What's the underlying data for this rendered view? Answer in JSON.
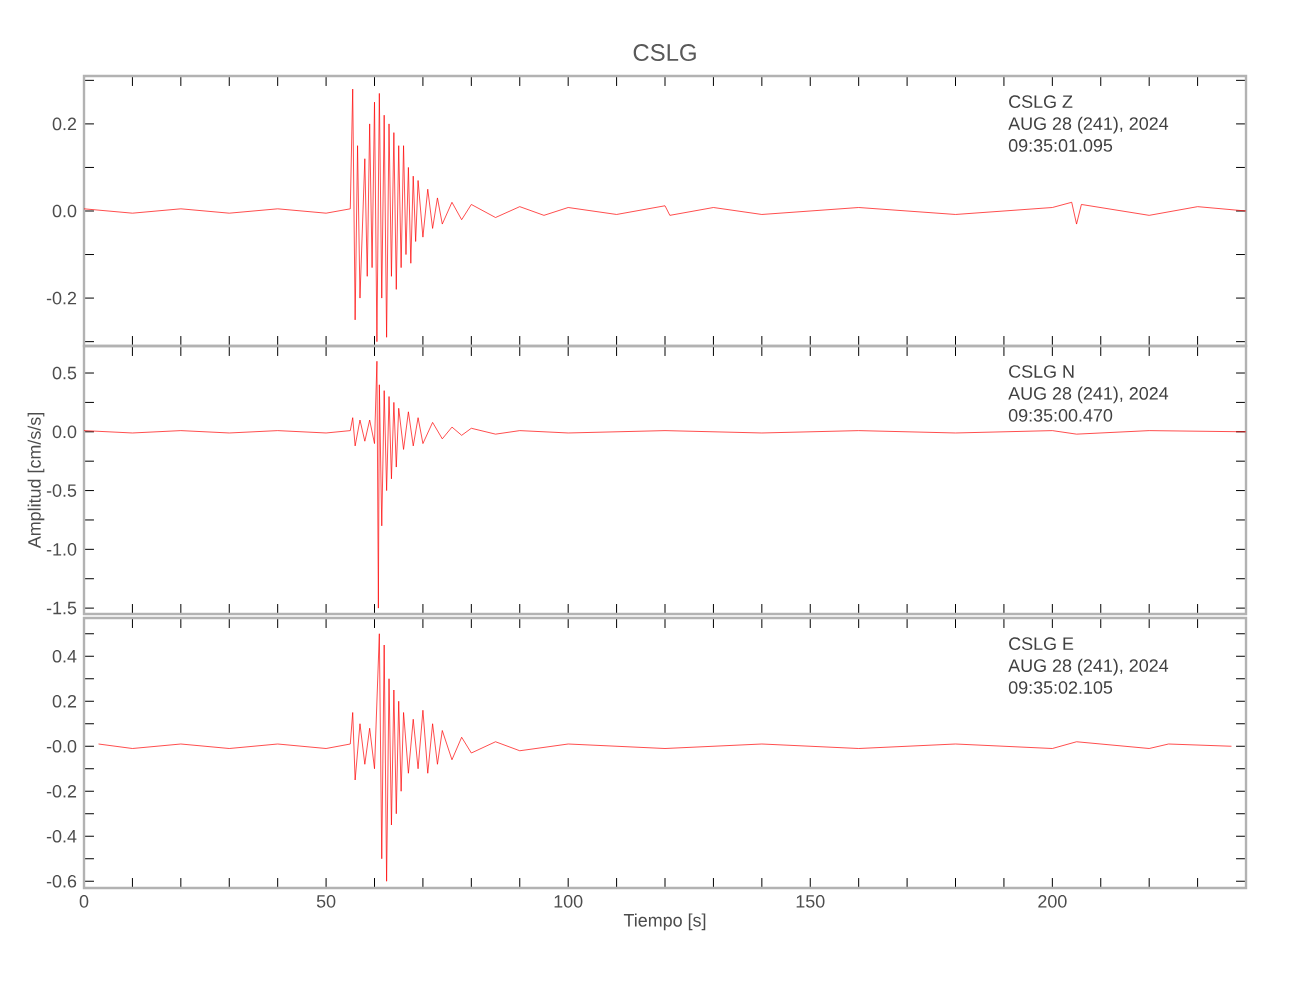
{
  "chart_data": [
    {
      "type": "line",
      "title": "CSLG",
      "color": "#ff0000",
      "marker": "none",
      "line_style": "solid",
      "tick_labels": "y",
      "annotations": [
        "CSLG   Z",
        "AUG 28 (241), 2024",
        "09:35:01.095"
      ],
      "xlim": [
        0,
        240
      ],
      "xticks": [
        {
          "value": 0,
          "label": null
        },
        {
          "value": 10,
          "label": null
        },
        {
          "value": 20,
          "label": null
        },
        {
          "value": 30,
          "label": null
        },
        {
          "value": 40,
          "label": null
        },
        {
          "value": 50,
          "label": null
        },
        {
          "value": 60,
          "label": null
        },
        {
          "value": 70,
          "label": null
        },
        {
          "value": 80,
          "label": null
        },
        {
          "value": 90,
          "label": null
        },
        {
          "value": 100,
          "label": null
        },
        {
          "value": 110,
          "label": null
        },
        {
          "value": 120,
          "label": null
        },
        {
          "value": 130,
          "label": null
        },
        {
          "value": 140,
          "label": null
        },
        {
          "value": 150,
          "label": null
        },
        {
          "value": 160,
          "label": null
        },
        {
          "value": 170,
          "label": null
        },
        {
          "value": 180,
          "label": null
        },
        {
          "value": 190,
          "label": null
        },
        {
          "value": 200,
          "label": null
        },
        {
          "value": 210,
          "label": null
        },
        {
          "value": 220,
          "label": null
        },
        {
          "value": 230,
          "label": null
        },
        {
          "value": 240,
          "label": null
        }
      ],
      "ylim": [
        -0.31,
        0.31
      ],
      "yticks": [
        {
          "value": -0.3,
          "label": null
        },
        -0.2,
        {
          "value": -0.1,
          "label": null
        },
        {
          "value": 0,
          "label": "0.0"
        },
        {
          "value": 0.1,
          "label": null
        },
        0.2,
        {
          "value": 0.3,
          "label": null
        }
      ],
      "x": [
        0,
        10,
        20,
        30,
        40,
        50,
        55,
        55.5,
        56,
        56.5,
        57,
        58,
        58.5,
        59,
        59.5,
        60,
        60.5,
        61,
        61.5,
        62,
        62.5,
        63,
        63.5,
        64,
        64.5,
        65,
        65.5,
        66,
        66.5,
        67,
        67.5,
        68,
        68.5,
        69,
        70,
        71,
        72,
        73,
        74,
        76,
        78,
        80,
        85,
        90,
        95,
        100,
        110,
        120,
        121,
        130,
        140,
        160,
        180,
        200,
        204,
        205,
        206,
        220,
        230,
        240
      ],
      "values": [
        0.005,
        -0.005,
        0.005,
        -0.005,
        0.005,
        -0.005,
        0.005,
        0.28,
        -0.25,
        0.15,
        -0.2,
        0.12,
        -0.15,
        0.2,
        -0.13,
        0.25,
        -0.3,
        0.27,
        -0.2,
        0.22,
        -0.29,
        0.2,
        -0.15,
        0.18,
        -0.18,
        0.15,
        -0.13,
        0.15,
        -0.1,
        0.1,
        -0.12,
        0.08,
        -0.07,
        0.07,
        -0.06,
        0.05,
        -0.04,
        0.03,
        -0.03,
        0.02,
        -0.02,
        0.015,
        -0.015,
        0.01,
        -0.01,
        0.008,
        -0.008,
        0.012,
        -0.01,
        0.008,
        -0.008,
        0.008,
        -0.008,
        0.008,
        0.02,
        -0.03,
        0.015,
        -0.01,
        0.01,
        0
      ]
    },
    {
      "type": "line",
      "ylabel": "Amplitud [cm/s/s]",
      "color": "#ff0000",
      "marker": "none",
      "line_style": "solid",
      "tick_labels": "y",
      "annotations": [
        "CSLG   N",
        "AUG 28 (241), 2024",
        "09:35:00.470"
      ],
      "xlim": [
        0,
        240
      ],
      "xticks": [
        {
          "value": 0,
          "label": null
        },
        {
          "value": 10,
          "label": null
        },
        {
          "value": 20,
          "label": null
        },
        {
          "value": 30,
          "label": null
        },
        {
          "value": 40,
          "label": null
        },
        {
          "value": 50,
          "label": null
        },
        {
          "value": 60,
          "label": null
        },
        {
          "value": 70,
          "label": null
        },
        {
          "value": 80,
          "label": null
        },
        {
          "value": 90,
          "label": null
        },
        {
          "value": 100,
          "label": null
        },
        {
          "value": 110,
          "label": null
        },
        {
          "value": 120,
          "label": null
        },
        {
          "value": 130,
          "label": null
        },
        {
          "value": 140,
          "label": null
        },
        {
          "value": 150,
          "label": null
        },
        {
          "value": 160,
          "label": null
        },
        {
          "value": 170,
          "label": null
        },
        {
          "value": 180,
          "label": null
        },
        {
          "value": 190,
          "label": null
        },
        {
          "value": 200,
          "label": null
        },
        {
          "value": 210,
          "label": null
        },
        {
          "value": 220,
          "label": null
        },
        {
          "value": 230,
          "label": null
        },
        {
          "value": 240,
          "label": null
        }
      ],
      "ylim": [
        -1.55,
        0.73
      ],
      "yticks": [
        -1.5,
        {
          "value": -1.25,
          "label": null
        },
        {
          "value": -1,
          "label": "-1.0"
        },
        {
          "value": -0.75,
          "label": null
        },
        -0.5,
        {
          "value": -0.25,
          "label": null
        },
        {
          "value": 0,
          "label": "0.0"
        },
        {
          "value": 0.25,
          "label": null
        },
        0.5
      ],
      "x": [
        0,
        10,
        20,
        30,
        40,
        50,
        55,
        55.5,
        56,
        57,
        58,
        59,
        60,
        60.5,
        60.8,
        61,
        61.5,
        62,
        62.5,
        63,
        63.5,
        64,
        64.5,
        65,
        66,
        67,
        68,
        69,
        70,
        72,
        74,
        76,
        78,
        80,
        85,
        90,
        100,
        120,
        140,
        160,
        180,
        200,
        205,
        220,
        240
      ],
      "values": [
        0.01,
        -0.01,
        0.01,
        -0.01,
        0.01,
        -0.01,
        0.01,
        0.12,
        -0.12,
        0.1,
        -0.08,
        0.1,
        -0.1,
        0.6,
        -1.5,
        0.4,
        -0.8,
        0.35,
        -0.5,
        0.3,
        -0.4,
        0.25,
        -0.3,
        0.2,
        -0.15,
        0.17,
        -0.12,
        0.12,
        -0.1,
        0.08,
        -0.06,
        0.04,
        -0.03,
        0.03,
        -0.02,
        0.01,
        -0.01,
        0.01,
        -0.01,
        0.01,
        -0.01,
        0.01,
        -0.02,
        0.01,
        0
      ]
    },
    {
      "type": "line",
      "xlabel": "Tiempo [s]",
      "color": "#ff0000",
      "marker": "none",
      "line_style": "solid",
      "annotations": [
        "CSLG   E",
        "AUG 28 (241), 2024",
        "09:35:02.105"
      ],
      "xlim": [
        0,
        240
      ],
      "xticks": [
        {
          "value": 0,
          "label": "0"
        },
        {
          "value": 10,
          "label": null
        },
        {
          "value": 20,
          "label": null
        },
        {
          "value": 30,
          "label": null
        },
        {
          "value": 40,
          "label": null
        },
        {
          "value": 50,
          "label": "50"
        },
        {
          "value": 60,
          "label": null
        },
        {
          "value": 70,
          "label": null
        },
        {
          "value": 80,
          "label": null
        },
        {
          "value": 90,
          "label": null
        },
        {
          "value": 100,
          "label": "100"
        },
        {
          "value": 110,
          "label": null
        },
        {
          "value": 120,
          "label": null
        },
        {
          "value": 130,
          "label": null
        },
        {
          "value": 140,
          "label": null
        },
        {
          "value": 150,
          "label": "150"
        },
        {
          "value": 160,
          "label": null
        },
        {
          "value": 170,
          "label": null
        },
        {
          "value": 180,
          "label": null
        },
        {
          "value": 190,
          "label": null
        },
        {
          "value": 200,
          "label": "200"
        },
        {
          "value": 210,
          "label": null
        },
        {
          "value": 220,
          "label": null
        },
        {
          "value": 230,
          "label": null
        },
        {
          "value": 240,
          "label": null
        }
      ],
      "ylim": [
        -0.63,
        0.57
      ],
      "yticks": [
        -0.6,
        {
          "value": -0.5,
          "label": null
        },
        -0.4,
        {
          "value": -0.3,
          "label": null
        },
        -0.2,
        {
          "value": -0.1,
          "label": null
        },
        {
          "value": 0,
          "label": "-0.0"
        },
        {
          "value": 0.1,
          "label": null
        },
        0.2,
        {
          "value": 0.3,
          "label": null
        },
        0.4,
        {
          "value": 0.5,
          "label": null
        }
      ],
      "x": [
        3,
        10,
        20,
        30,
        40,
        50,
        55,
        55.5,
        56,
        57,
        58,
        59,
        60,
        61,
        61.5,
        62,
        62.5,
        63,
        63.5,
        64,
        64.5,
        65,
        65.5,
        66,
        67,
        68,
        69,
        70,
        71,
        72,
        73,
        74,
        76,
        78,
        80,
        85,
        90,
        100,
        120,
        140,
        160,
        180,
        200,
        205,
        220,
        224,
        237
      ],
      "values": [
        0.01,
        -0.01,
        0.01,
        -0.01,
        0.01,
        -0.01,
        0.01,
        0.15,
        -0.15,
        0.1,
        -0.08,
        0.08,
        -0.1,
        0.5,
        -0.5,
        0.45,
        -0.6,
        0.3,
        -0.35,
        0.25,
        -0.3,
        0.2,
        -0.2,
        0.15,
        -0.12,
        0.12,
        -0.1,
        0.16,
        -0.12,
        0.1,
        -0.08,
        0.07,
        -0.06,
        0.04,
        -0.03,
        0.02,
        -0.02,
        0.01,
        -0.01,
        0.01,
        -0.01,
        0.01,
        -0.01,
        0.02,
        -0.01,
        0.01,
        0
      ]
    }
  ]
}
